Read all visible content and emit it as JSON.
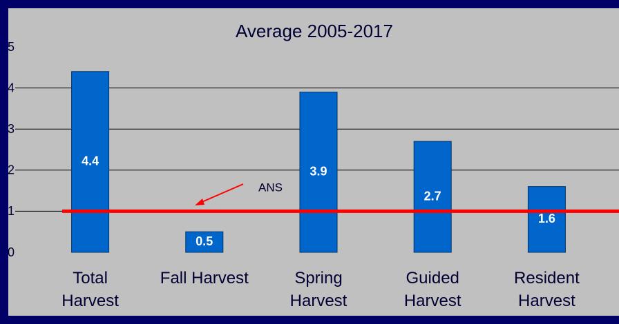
{
  "chart_data": {
    "type": "bar",
    "title": "Average 2005-2017",
    "categories": [
      "Total\nHarvest",
      "Fall Harvest",
      "Spring\nHarvest",
      "Guided\nHarvest",
      "Resident\nHarvest"
    ],
    "values": [
      4.4,
      0.5,
      3.9,
      2.7,
      1.6
    ],
    "color": "#0066cc",
    "ylim": [
      0,
      5
    ],
    "yticks": [
      0,
      1,
      2,
      3,
      4,
      5
    ],
    "grid": true,
    "reference_line": {
      "value": 1,
      "color": "#ff0000"
    },
    "annotation": {
      "text": "ANS"
    }
  }
}
